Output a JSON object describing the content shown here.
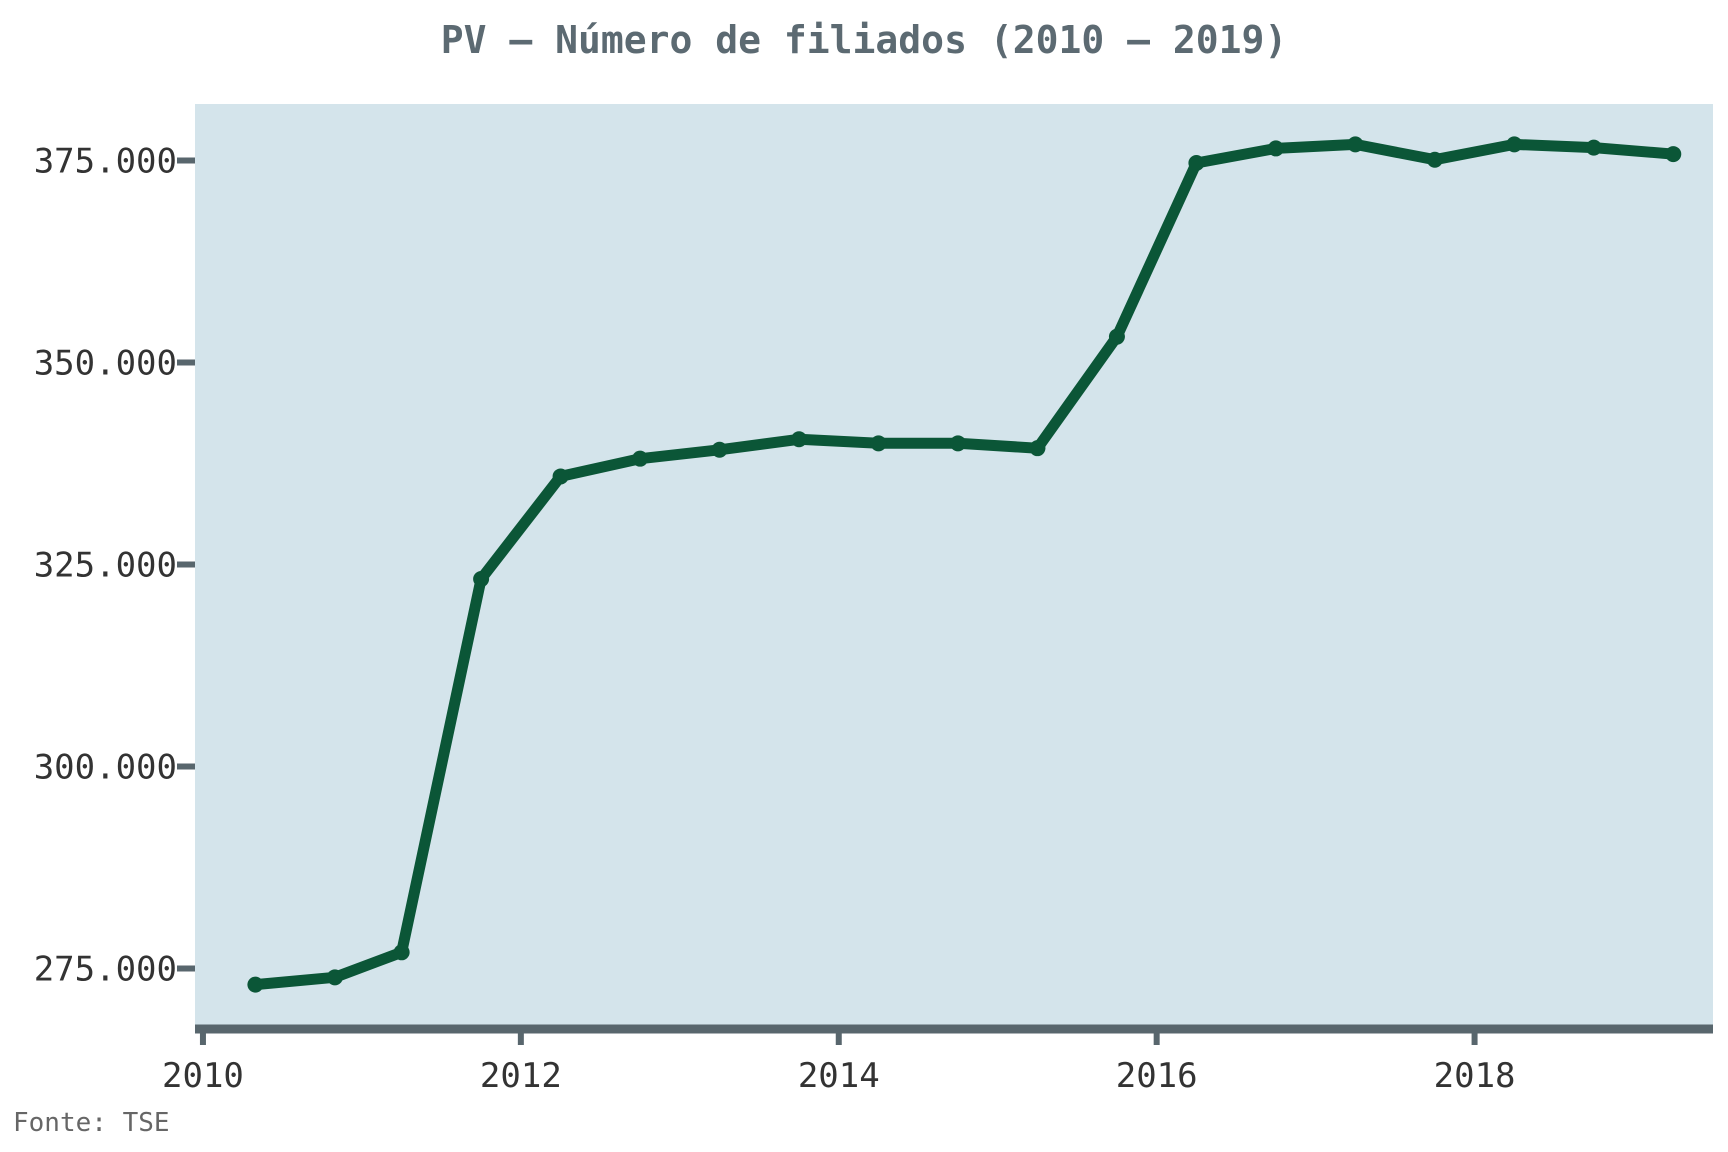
{
  "colors": {
    "panel_background": "#d4e4eb",
    "line": "#0b5637",
    "axis": "#58666d",
    "title": "#5c6a72",
    "tick_label": "#333333",
    "source": "#666666"
  },
  "source": "Fonte: TSE",
  "chart_data": {
    "type": "line",
    "title": "PV – Número de filiados (2010 – 2019)",
    "xlabel": "",
    "ylabel": "",
    "xlim": [
      2009.95,
      2019.5
    ],
    "ylim": [
      268000,
      382000
    ],
    "x_ticks": [
      2010,
      2012,
      2014,
      2016,
      2018
    ],
    "x_tick_labels": [
      "2010",
      "2012",
      "2014",
      "2016",
      "2018"
    ],
    "y_ticks": [
      275000,
      300000,
      325000,
      350000,
      375000
    ],
    "y_tick_labels": [
      "275.000",
      "300.000",
      "325.000",
      "350.000",
      "375.000"
    ],
    "grid": false,
    "series": [
      {
        "name": "",
        "x": [
          2010.33,
          2010.83,
          2011.25,
          2011.75,
          2012.25,
          2012.75,
          2013.25,
          2013.75,
          2014.25,
          2014.75,
          2015.25,
          2015.75,
          2016.25,
          2016.75,
          2017.25,
          2017.75,
          2018.25,
          2018.75,
          2019.25
        ],
        "y": [
          273000,
          273900,
          277000,
          323200,
          335900,
          338100,
          339200,
          340500,
          340000,
          340000,
          339400,
          353200,
          374700,
          376500,
          377000,
          375100,
          377000,
          376600,
          375800
        ]
      }
    ]
  }
}
